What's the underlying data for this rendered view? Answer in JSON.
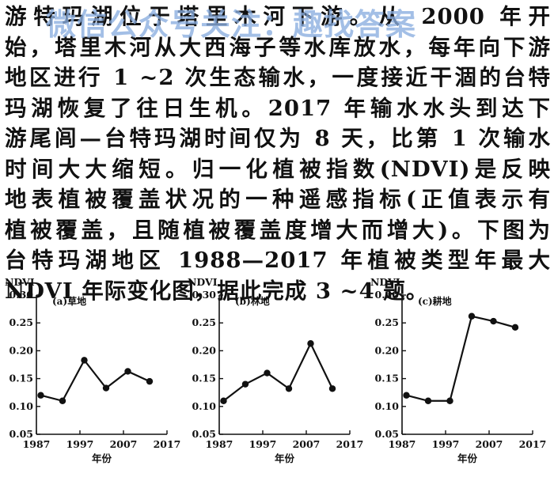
{
  "question": {
    "lines": [
      "游特玛湖位于塔里木河下游。从 2000 年开",
      "始，塔里木河从大西海子等水库放水，每年向下游",
      "地区进行 1 ~2 次生态输水，一度接近干涸的台特",
      "玛湖恢复了往日生机。2017 年输水水头到达下",
      "游尾闾—台特玛湖时间仅为 8 天，比第 1 次输水",
      "时间大大缩短。归一化植被指数(NDVI)是反映",
      "地表植被覆盖状况的一种遥感指标(正值表示有",
      "植被覆盖，且随植被覆盖度增大而增大)。下图为",
      "台特玛湖地区 1988—2017 年植被类型年最大",
      "NDVI 年际变化图，据此完成 3 ~4 题。"
    ]
  },
  "watermark": "微信公众号关注：趣找答案",
  "colors": {
    "ink": "#111111",
    "watermark": "#8aaee0"
  },
  "chart_data": [
    {
      "type": "line",
      "title": "(a)草地",
      "ylabel": "NDVI",
      "xlabel": "年份",
      "x": [
        1988,
        1993,
        1998,
        2003,
        2008,
        2013
      ],
      "series": [
        {
          "values": [
            0.12,
            0.11,
            0.183,
            0.133,
            0.163,
            0.145
          ]
        }
      ],
      "xticks": [
        "1987",
        "1997",
        "2007",
        "2017"
      ],
      "xtick_values": [
        1987,
        1997,
        2007,
        2017
      ],
      "yticks": [
        "0.05",
        "0.10",
        "0.15",
        "0.20",
        "0.25",
        "0.30"
      ],
      "ylim": [
        0.05,
        0.3
      ],
      "xlim": [
        1987,
        2017
      ]
    },
    {
      "type": "line",
      "title": "(b)林地",
      "ylabel": "NDVI",
      "xlabel": "年份",
      "x": [
        1988,
        1993,
        1998,
        2003,
        2008,
        2013
      ],
      "series": [
        {
          "values": [
            0.11,
            0.14,
            0.16,
            0.132,
            0.213,
            0.132
          ]
        }
      ],
      "xticks": [
        "1987",
        "1997",
        "2007",
        "2017"
      ],
      "xtick_values": [
        1987,
        1997,
        2007,
        2017
      ],
      "yticks": [
        "0.05",
        "0.10",
        "0.15",
        "0.20",
        "0.25",
        "0.30"
      ],
      "ylim": [
        0.05,
        0.3
      ],
      "xlim": [
        1987,
        2017
      ]
    },
    {
      "type": "line",
      "title": "(c)耕地",
      "ylabel": "NDVI",
      "xlabel": "年份",
      "x": [
        1988,
        1993,
        1998,
        2003,
        2008,
        2013
      ],
      "series": [
        {
          "values": [
            0.12,
            0.11,
            0.11,
            0.262,
            0.253,
            0.242
          ]
        }
      ],
      "xticks": [
        "1987",
        "1997",
        "2007",
        "2017"
      ],
      "xtick_values": [
        1987,
        1997,
        2007,
        2017
      ],
      "yticks": [
        "0.05",
        "0.10",
        "0.15",
        "0.20",
        "0.25",
        "0.30"
      ],
      "ylim": [
        0.05,
        0.3
      ],
      "xlim": [
        1987,
        2017
      ]
    }
  ]
}
